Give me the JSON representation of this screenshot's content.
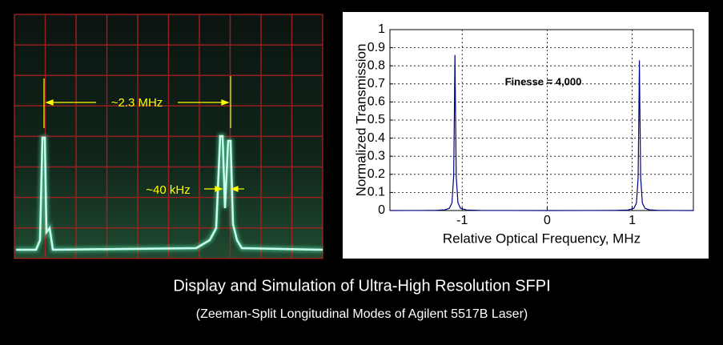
{
  "chart_data": {
    "type": "line",
    "xlabel": "Relative Optical Frequency, MHz",
    "ylabel": "Normalized Transmission",
    "annotation": "Finesse = 4,000",
    "x": [
      -1.85,
      -1.5,
      -1.3,
      -1.2,
      -1.15,
      -1.12,
      -1.1,
      -1.09,
      -1.085,
      -1.08,
      -1.07,
      -1.05,
      -1.02,
      -0.95,
      -0.8,
      -0.5,
      0,
      0.5,
      0.8,
      0.95,
      1.02,
      1.05,
      1.07,
      1.08,
      1.085,
      1.09,
      1.1,
      1.12,
      1.15,
      1.2,
      1.3,
      1.5,
      1.72
    ],
    "values": [
      0.0001,
      0.0003,
      0.0012,
      0.0041,
      0.0128,
      0.043,
      0.19,
      0.61,
      0.86,
      0.61,
      0.19,
      0.043,
      0.0128,
      0.003,
      0.0007,
      0.0002,
      0.0001,
      0.0002,
      0.0007,
      0.003,
      0.0124,
      0.041,
      0.18,
      0.59,
      0.83,
      0.59,
      0.18,
      0.041,
      0.0124,
      0.004,
      0.0012,
      0.0003,
      0.0001
    ],
    "color": "#000080",
    "xlim": [
      -1.85,
      1.72
    ],
    "xticks": [
      -1,
      0,
      1
    ],
    "ylim": [
      0,
      1
    ],
    "yticks": [
      0,
      0.1,
      0.2,
      0.3,
      0.4,
      0.5,
      0.6,
      0.7,
      0.8,
      0.9,
      1
    ],
    "grid": true
  },
  "scope": {
    "annotations": [
      "~2.3 MHz",
      "~40 kHz"
    ]
  },
  "caption": {
    "title": "Display and Simulation of Ultra-High Resolution SFPI",
    "subtitle": "(Zeeman-Split Longitudinal Modes of Agilent 5517B Laser)"
  }
}
